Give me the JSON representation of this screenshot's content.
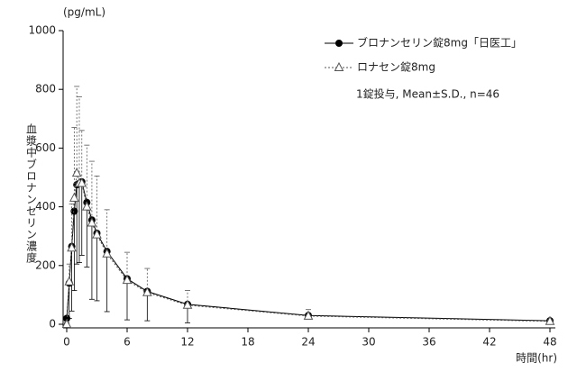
{
  "chart_data": {
    "type": "line",
    "y_unit": "(pg/mL)",
    "ylabel": "血漿中ブロナンセリン濃度",
    "xlabel": "時間(hr)",
    "annotation": "1錠投与, Mean±S.D., n=46",
    "x": [
      0,
      0.25,
      0.5,
      0.75,
      1,
      1.25,
      1.5,
      2,
      2.5,
      3,
      4,
      6,
      8,
      12,
      24,
      48
    ],
    "series": [
      {
        "name": "ブロナンセリン錠8mg「日医工」",
        "color": "#000000",
        "marker": "circle",
        "line_style": "solid",
        "error_side": "lower",
        "values": [
          20,
          140,
          265,
          385,
          475,
          480,
          485,
          415,
          355,
          310,
          248,
          155,
          112,
          68,
          30,
          12
        ],
        "errors": [
          15,
          120,
          220,
          270,
          270,
          270,
          250,
          220,
          270,
          230,
          205,
          140,
          100,
          63,
          12,
          5
        ]
      },
      {
        "name": "ロナセン錠8mg",
        "color": "#555555",
        "marker": "triangle",
        "line_style": "dashed",
        "error_side": "upper",
        "values": [
          0,
          145,
          260,
          430,
          515,
          480,
          480,
          400,
          345,
          305,
          240,
          150,
          108,
          65,
          28,
          10
        ],
        "errors": [
          10,
          60,
          150,
          240,
          295,
          295,
          180,
          210,
          210,
          200,
          150,
          95,
          82,
          50,
          22,
          5
        ]
      }
    ],
    "xlim": [
      0,
      48
    ],
    "xticks": [
      0,
      6,
      12,
      18,
      24,
      30,
      36,
      42,
      48
    ],
    "ylim": [
      0,
      1000
    ],
    "yticks": [
      0,
      200,
      400,
      600,
      800,
      1000
    ]
  }
}
